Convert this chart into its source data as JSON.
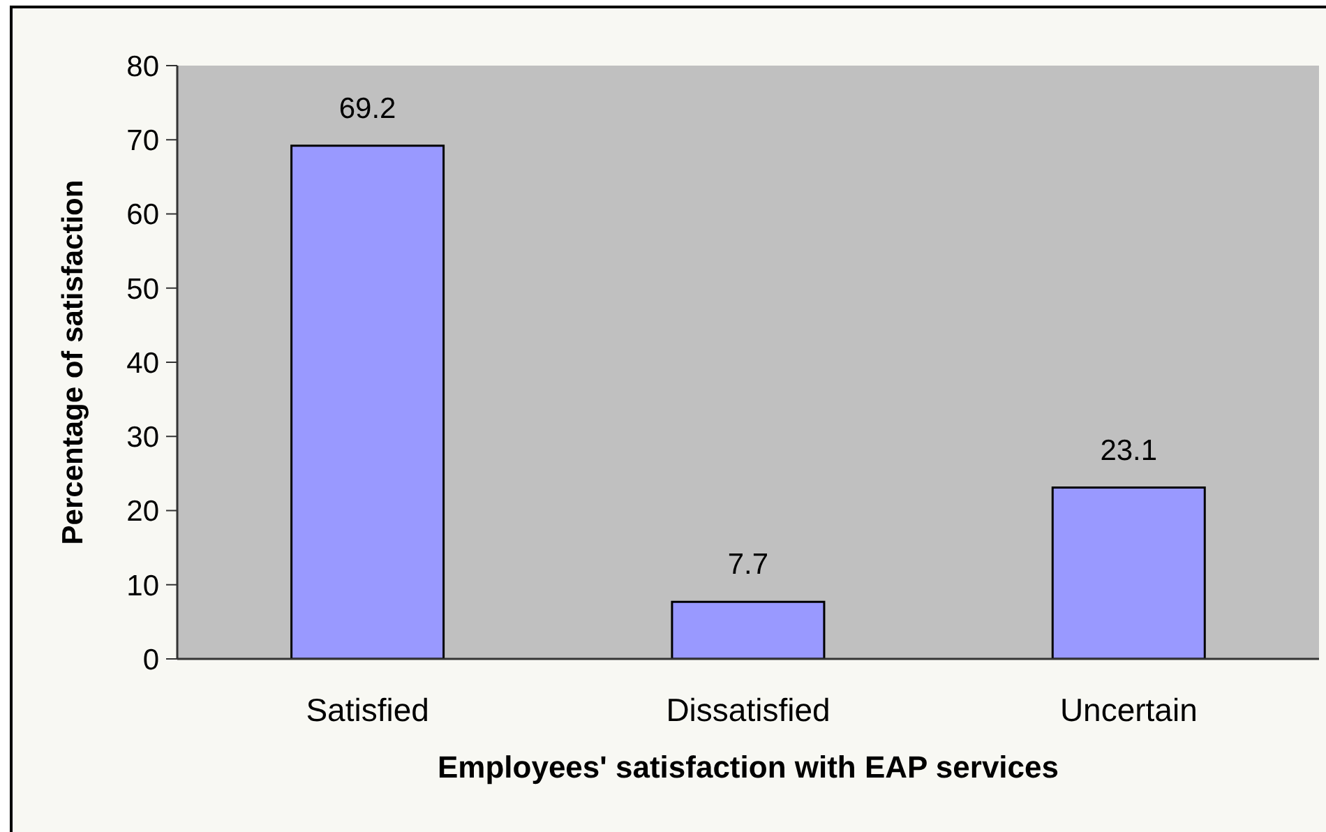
{
  "chart_data": {
    "type": "bar",
    "xlabel": "Employees' satisfaction with EAP services",
    "ylabel": "Percentage of satisfaction",
    "categories": [
      "Satisfied",
      "Dissatisfied",
      "Uncertain"
    ],
    "values": [
      69.2,
      7.7,
      23.1
    ],
    "color": "#9999ff",
    "ylim": [
      0,
      80
    ],
    "yticks": [
      0,
      10,
      20,
      30,
      40,
      50,
      60,
      70,
      80
    ],
    "data_labels": true
  }
}
